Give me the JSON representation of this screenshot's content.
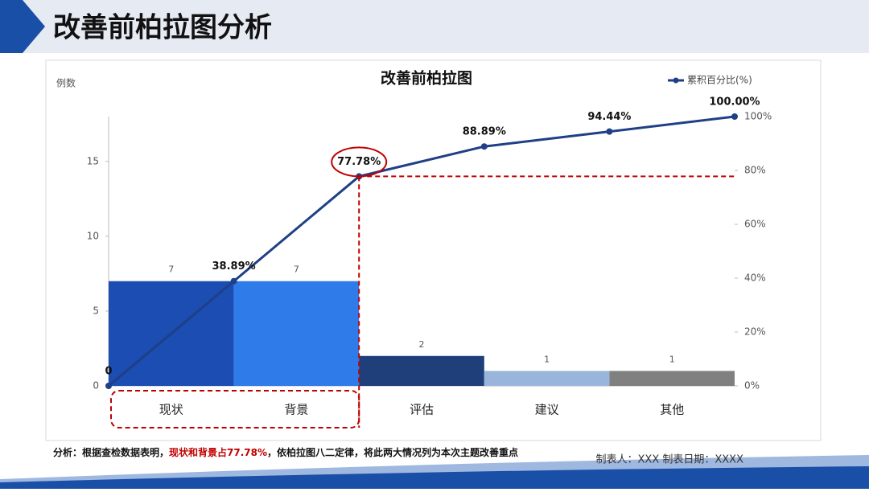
{
  "header": {
    "title": "改善前柏拉图分析"
  },
  "chart_data": {
    "type": "pareto",
    "title": "改善前柏拉图",
    "y_label": "例数",
    "categories": [
      "现状",
      "背景",
      "评估",
      "建议",
      "其他"
    ],
    "values": [
      7,
      7,
      2,
      1,
      1
    ],
    "colors": [
      "#1c4db3",
      "#2f7bea",
      "#1f3f7a",
      "#9ab5dc",
      "#808080"
    ],
    "ylim": [
      0,
      18
    ],
    "yticks": [
      0,
      5,
      10,
      15
    ],
    "y2lim": [
      0,
      100
    ],
    "y2ticks": [
      {
        "value": 0,
        "label": "0%"
      },
      {
        "value": 20,
        "label": "20%"
      },
      {
        "value": 40,
        "label": "40%"
      },
      {
        "value": 60,
        "label": "60%"
      },
      {
        "value": 80,
        "label": "80%"
      },
      {
        "value": 100,
        "label": "100%"
      }
    ],
    "cumulative": {
      "name": "累积百分比(%)",
      "color": "#1f3f86",
      "axis": "y2",
      "values": [
        0,
        38.89,
        77.78,
        88.89,
        94.44,
        100
      ],
      "value_labels": [
        "0",
        "38.89%",
        "77.78%",
        "88.89%",
        "94.44%",
        "100.00%"
      ]
    },
    "legend": "top-right"
  },
  "footer": {
    "analysis": [
      "分析：根据查检数据表明，",
      "现状和背景占77.78%",
      "，依柏拉图八二定律，将此两大情况列为本次主题改善重点"
    ],
    "author": "制表人：XXX  制表日期：XXXX"
  }
}
